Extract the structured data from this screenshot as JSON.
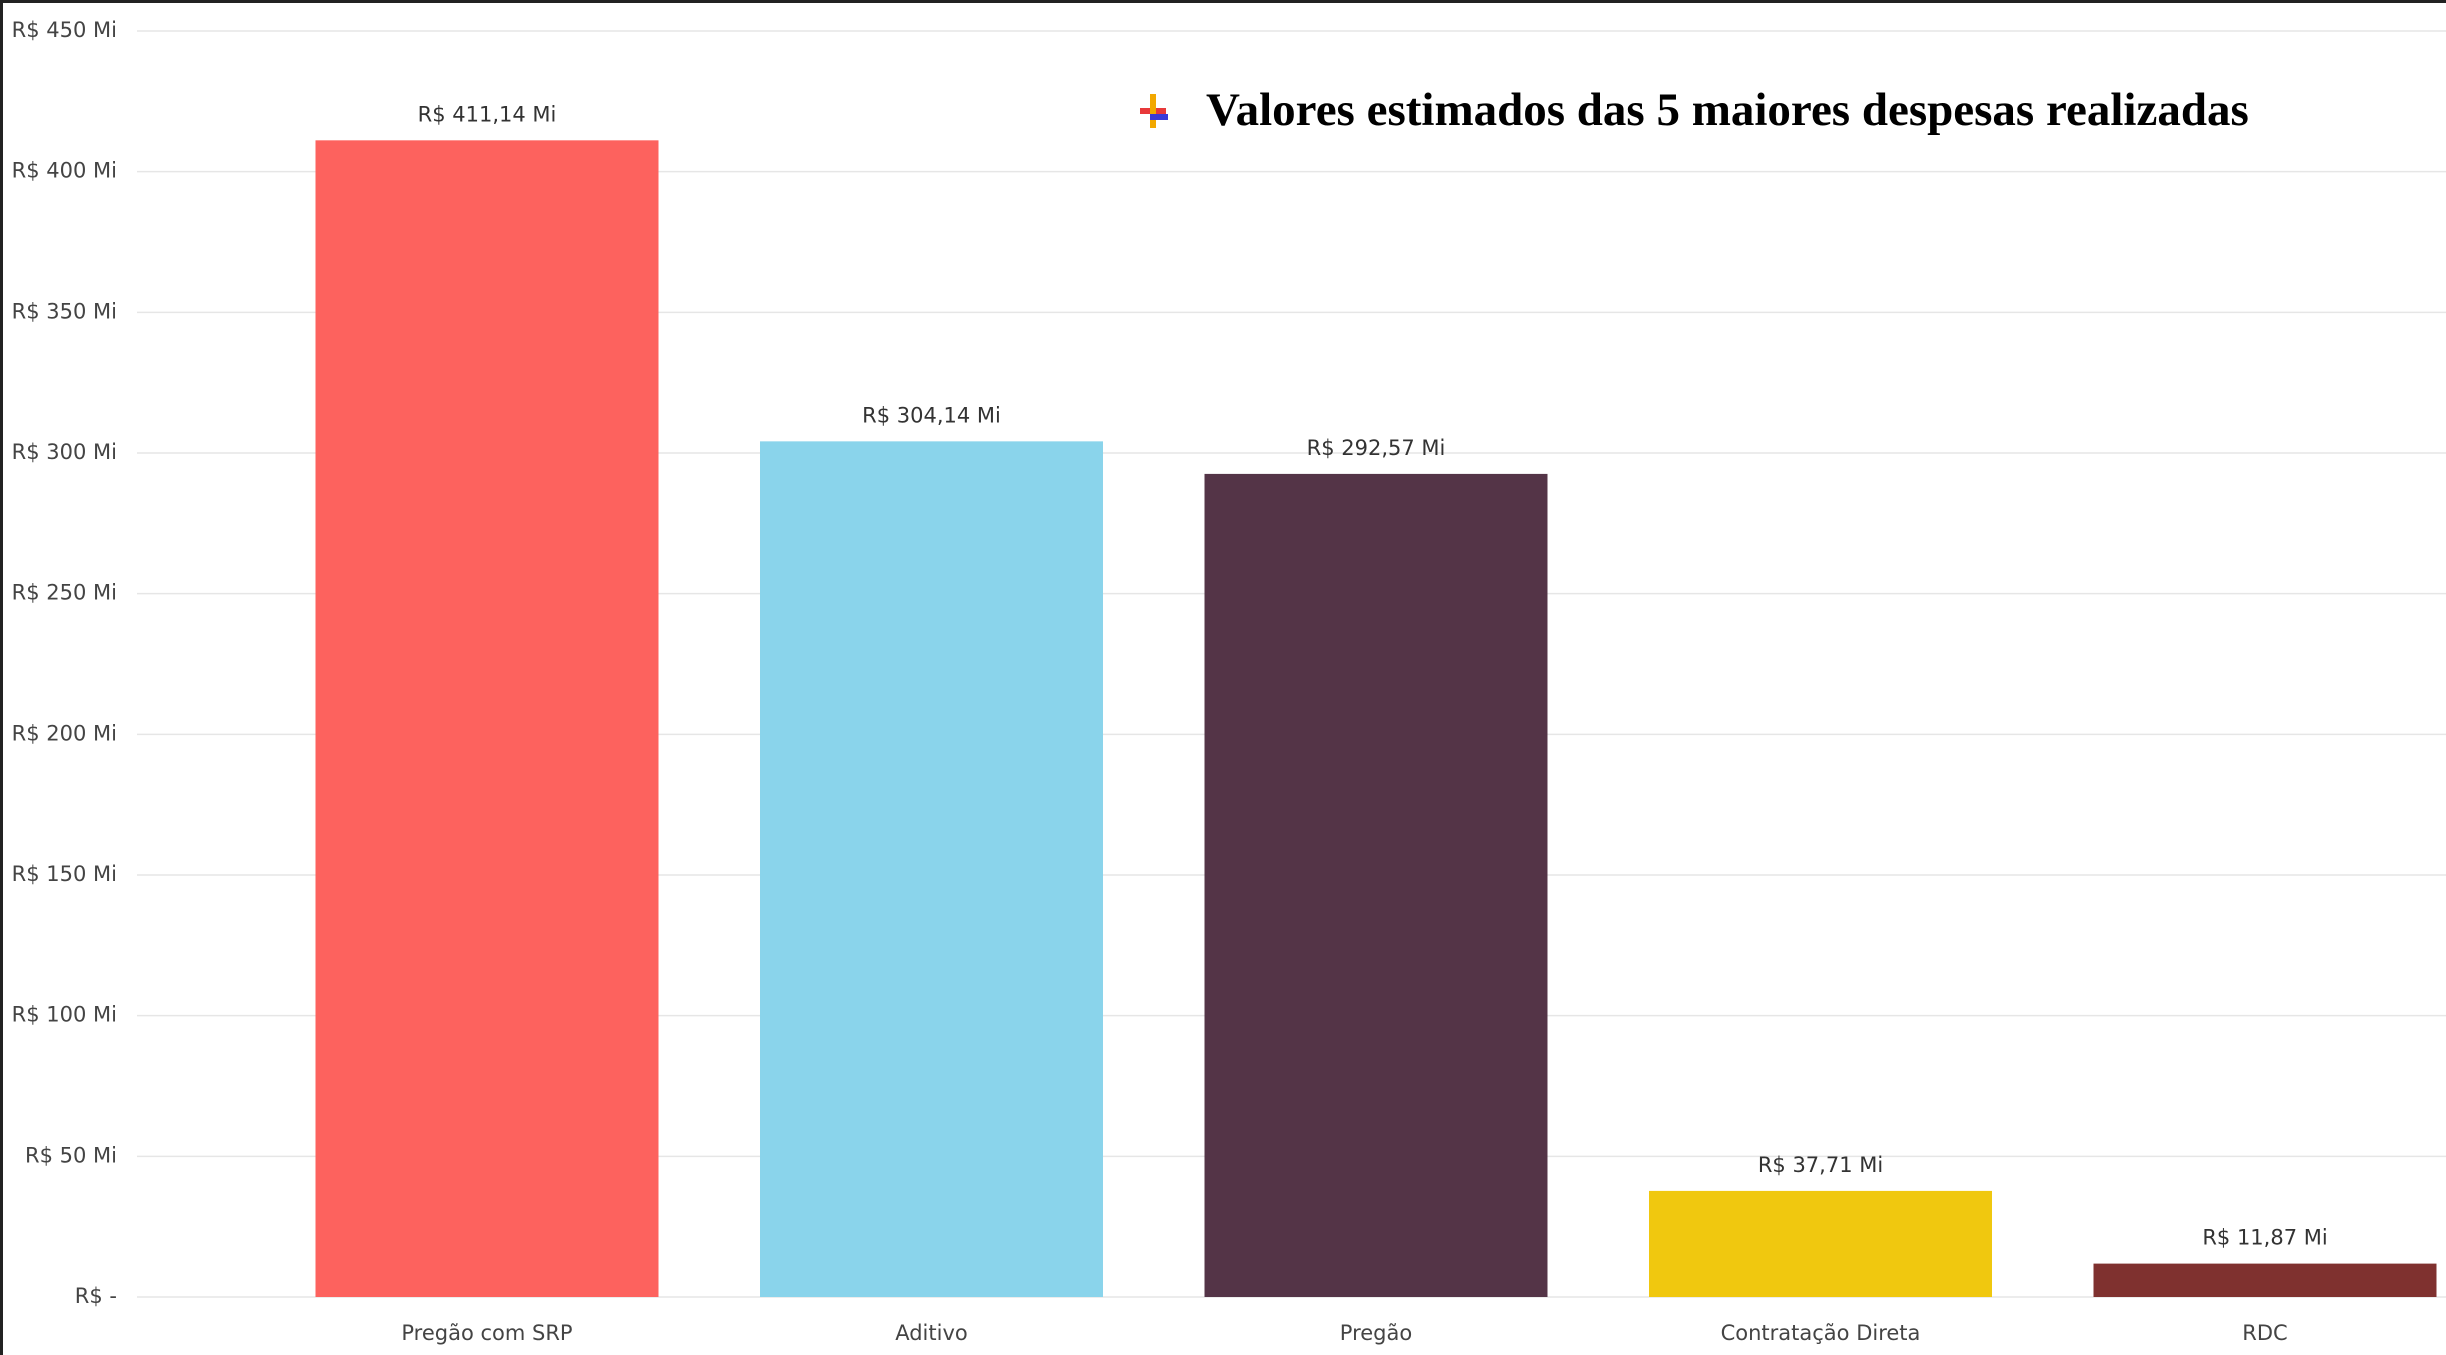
{
  "chart_data": {
    "type": "bar",
    "title": "Valores estimados das 5 maiores despesas realizadas",
    "categories": [
      "Pregão com SRP",
      "Aditivo",
      "Pregão",
      "Contratação Direta",
      "RDC"
    ],
    "values": [
      411.14,
      304.14,
      292.57,
      37.71,
      11.87
    ],
    "value_labels": [
      "R$ 411,14 Mi",
      "R$ 304,14 Mi",
      "R$ 292,57 Mi",
      "R$ 37,71 Mi",
      "R$ 11,87 Mi"
    ],
    "colors": [
      "#fd625e",
      "#8ad4eb",
      "#543447",
      "#f0c80f",
      "#7f312f"
    ],
    "ylim": [
      0,
      450
    ],
    "yticks": [
      {
        "value": 0,
        "label": "R$ -"
      },
      {
        "value": 50,
        "label": "R$ 50 Mi"
      },
      {
        "value": 100,
        "label": "R$ 100 Mi"
      },
      {
        "value": 150,
        "label": "R$ 150 Mi"
      },
      {
        "value": 200,
        "label": "R$ 200 Mi"
      },
      {
        "value": 250,
        "label": "R$ 250 Mi"
      },
      {
        "value": 300,
        "label": "R$ 300 Mi"
      },
      {
        "value": 350,
        "label": "R$ 350 Mi"
      },
      {
        "value": 400,
        "label": "R$ 400 Mi"
      },
      {
        "value": 450,
        "label": "R$ 450 Mi"
      }
    ],
    "grid": true
  }
}
